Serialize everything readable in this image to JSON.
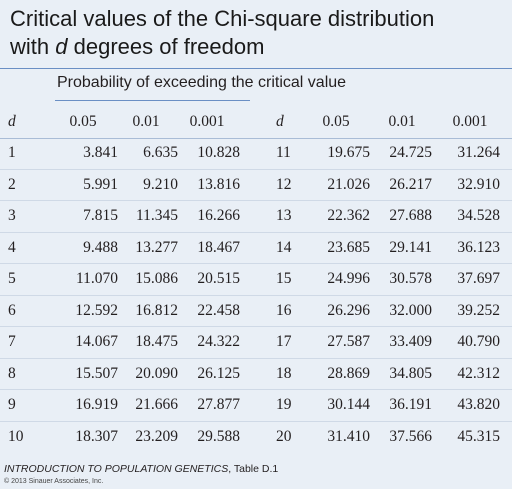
{
  "header": {
    "title_line1": "Critical values of the Chi-square distribution",
    "title_line2": [
      "with",
      "d",
      "degrees of freedom"
    ],
    "subtitle": "Probability of exceeding the critical value"
  },
  "table": {
    "columns": [
      "d",
      "0.05",
      "0.01",
      "0.001",
      "d",
      "0.05",
      "0.01",
      "0.001"
    ],
    "rows": [
      [
        "1",
        "3.841",
        "6.635",
        "10.828",
        "11",
        "19.675",
        "24.725",
        "31.264"
      ],
      [
        "2",
        "5.991",
        "9.210",
        "13.816",
        "12",
        "21.026",
        "26.217",
        "32.910"
      ],
      [
        "3",
        "7.815",
        "11.345",
        "16.266",
        "13",
        "22.362",
        "27.688",
        "34.528"
      ],
      [
        "4",
        "9.488",
        "13.277",
        "18.467",
        "14",
        "23.685",
        "29.141",
        "36.123"
      ],
      [
        "5",
        "11.070",
        "15.086",
        "20.515",
        "15",
        "24.996",
        "30.578",
        "37.697"
      ],
      [
        "6",
        "12.592",
        "16.812",
        "22.458",
        "16",
        "26.296",
        "32.000",
        "39.252"
      ],
      [
        "7",
        "14.067",
        "18.475",
        "24.322",
        "17",
        "27.587",
        "33.409",
        "40.790"
      ],
      [
        "8",
        "15.507",
        "20.090",
        "26.125",
        "18",
        "28.869",
        "34.805",
        "42.312"
      ],
      [
        "9",
        "16.919",
        "21.666",
        "27.877",
        "19",
        "30.144",
        "36.191",
        "43.820"
      ],
      [
        "10",
        "18.307",
        "23.209",
        "29.588",
        "20",
        "31.410",
        "37.566",
        "45.315"
      ]
    ]
  },
  "footer": {
    "book": "INTRODUCTION TO POPULATION GENETICS",
    "table_ref": ", Table D.1",
    "copyright": "© 2013 Sinauer Associates, Inc."
  }
}
